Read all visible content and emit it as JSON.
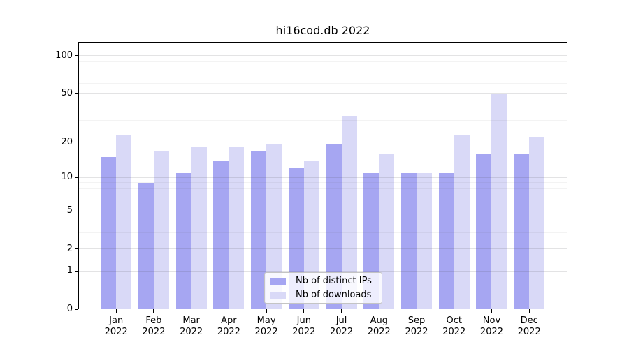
{
  "chart_data": {
    "type": "bar",
    "title": "hi16cod.db 2022",
    "categories": [
      "Jan",
      "Feb",
      "Mar",
      "Apr",
      "May",
      "Jun",
      "Jul",
      "Aug",
      "Sep",
      "Oct",
      "Nov",
      "Dec"
    ],
    "year_label": "2022",
    "series": [
      {
        "name": "Nb of distinct IPs",
        "color": "#a6a6f2",
        "values": [
          15,
          9,
          11,
          14,
          17,
          12,
          19,
          11,
          11,
          11,
          16,
          16
        ]
      },
      {
        "name": "Nb of downloads",
        "color": "#d9d9f7",
        "values": [
          23,
          17,
          18,
          18,
          19,
          14,
          33,
          16,
          11,
          23,
          50,
          22
        ]
      }
    ],
    "y_axis": {
      "scale": "log(value+1)",
      "tick_labels": [
        0,
        1,
        2,
        5,
        10,
        20,
        50,
        100
      ],
      "minor_gridlines": [
        3,
        4,
        6,
        7,
        8,
        9,
        30,
        40,
        60,
        70,
        80,
        90
      ],
      "range_top": 130
    },
    "legend_position": "inside-bottom-center",
    "grid": "on"
  },
  "colors": {
    "background": "#ffffff",
    "axis": "#000000",
    "text": "#000000",
    "grid_major": "rgba(80,80,90,0.16)",
    "grid_minor": "rgba(80,80,90,0.07)",
    "legend_border": "#c4c4c4",
    "legend_background": "rgba(255,255,255,0.8)"
  }
}
